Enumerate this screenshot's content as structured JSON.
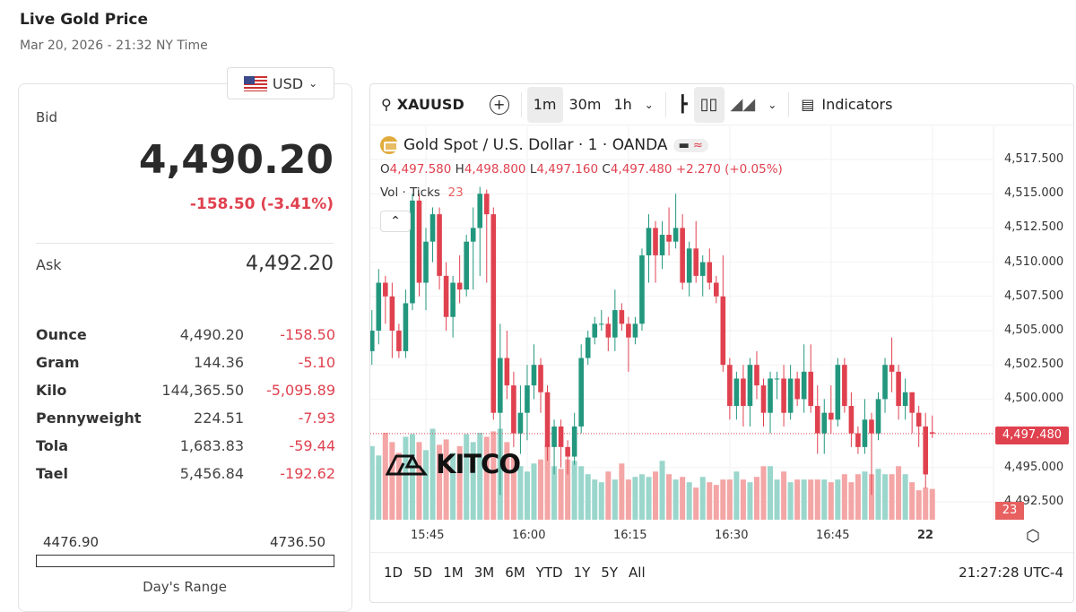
{
  "page": {
    "title": "Live Gold Price",
    "subtitle": "Mar 20, 2026 - 21:32 NY Time"
  },
  "currency": {
    "selected": "USD",
    "icon": "us-flag-icon"
  },
  "quote": {
    "bid_label": "Bid",
    "bid": "4,490.20",
    "change": "-158.50 (-3.41%)",
    "ask_label": "Ask",
    "ask": "4,492.20",
    "rows": [
      {
        "unit": "Ounce",
        "price": "4,490.20",
        "change": "-158.50"
      },
      {
        "unit": "Gram",
        "price": "144.36",
        "change": "-5.10"
      },
      {
        "unit": "Kilo",
        "price": "144,365.50",
        "change": "-5,095.89"
      },
      {
        "unit": "Pennyweight",
        "price": "224.51",
        "change": "-7.93"
      },
      {
        "unit": "Tola",
        "price": "1,683.83",
        "change": "-59.44"
      },
      {
        "unit": "Tael",
        "price": "5,456.84",
        "change": "-192.62"
      }
    ],
    "range_low": "4476.90",
    "range_high": "4736.50",
    "range_label": "Day's Range"
  },
  "toolbar": {
    "symbol": "XAUUSD",
    "intervals": [
      "1m",
      "30m",
      "1h"
    ],
    "active_interval": "1m",
    "indicators": "Indicators"
  },
  "legend": {
    "name": "Gold Spot / U.S. Dollar · 1 · OANDA",
    "o_label": "O",
    "o": "4,497.580",
    "h_label": "H",
    "h": "4,498.800",
    "l_label": "L",
    "l": "4,497.160",
    "c_label": "C",
    "c": "4,497.480",
    "chg": "+2.270 (+0.05%)",
    "vol_label": "Vol · Ticks",
    "vol": "23"
  },
  "watermark": "KITCO",
  "ranges": [
    "1D",
    "5D",
    "1M",
    "3M",
    "6M",
    "YTD",
    "1Y",
    "5Y",
    "All"
  ],
  "clock": "21:27:28 UTC-4",
  "colors": {
    "up": "#22977e",
    "down": "#e0414f",
    "up_vol": "#9ad6cc",
    "down_vol": "#f4a5a5"
  },
  "chart_data": {
    "type": "candlestick",
    "symbol": "XAUUSD",
    "interval": "1m",
    "y_ticks": [
      "4,517.500",
      "4,515.000",
      "4,512.500",
      "4,510.000",
      "4,507.500",
      "4,505.000",
      "4,502.500",
      "4,500.000",
      "4,495.000",
      "4,492.500"
    ],
    "x_ticks": [
      "15:45",
      "16:00",
      "16:15",
      "16:30",
      "16:45",
      "22"
    ],
    "ylim": [
      4491,
      4519
    ],
    "last_price": "4,497.480",
    "last_volume": "23",
    "start_time": "15:36",
    "ohlc": [
      [
        4495,
        4504,
        4493,
        4503.5
      ],
      [
        4503.5,
        4506.5,
        4502.5,
        4505
      ],
      [
        4505,
        4509.5,
        4504,
        4508.5
      ],
      [
        4508.5,
        4509,
        4505.5,
        4507.5
      ],
      [
        4507.5,
        4508.5,
        4503,
        4505
      ],
      [
        4505,
        4505.5,
        4503,
        4503.5
      ],
      [
        4503.5,
        4508,
        4503,
        4507
      ],
      [
        4507,
        4515,
        4506.5,
        4514.5
      ],
      [
        4514.5,
        4515,
        4507.5,
        4508.5
      ],
      [
        4508.5,
        4512.5,
        4506.5,
        4511.5
      ],
      [
        4511.5,
        4514,
        4510,
        4513.5
      ],
      [
        4513.5,
        4514,
        4508,
        4509
      ],
      [
        4509,
        4510,
        4505,
        4506
      ],
      [
        4506,
        4509,
        4504.5,
        4508.5
      ],
      [
        4508.5,
        4510.5,
        4507,
        4508
      ],
      [
        4508,
        4512,
        4507.5,
        4511.5
      ],
      [
        4511.5,
        4514,
        4508,
        4512.5
      ],
      [
        4512.5,
        4515.5,
        4509,
        4515
      ],
      [
        4515,
        4515.3,
        4508.5,
        4513.5
      ],
      [
        4513.5,
        4514,
        4498.5,
        4499
      ],
      [
        4499,
        4505.5,
        4493,
        4503
      ],
      [
        4503,
        4505,
        4500,
        4501
      ],
      [
        4501,
        4502,
        4496.5,
        4497.5
      ],
      [
        4497.5,
        4501,
        4496,
        4499
      ],
      [
        4499,
        4502.5,
        4497,
        4501
      ],
      [
        4501,
        4504,
        4500,
        4502.5
      ],
      [
        4502.5,
        4503,
        4499,
        4500.5
      ],
      [
        4500.5,
        4501,
        4495.5,
        4496.5
      ],
      [
        4496.5,
        4498.5,
        4494.5,
        4498
      ],
      [
        4498,
        4498.5,
        4495,
        4496.5
      ],
      [
        4496.5,
        4497,
        4494.5,
        4495.8
      ],
      [
        4495.8,
        4499,
        4495.2,
        4498
      ],
      [
        4498,
        4504,
        4497.5,
        4503
      ],
      [
        4503,
        4505,
        4502.5,
        4504.5
      ],
      [
        4504.5,
        4506,
        4504,
        4505.5
      ],
      [
        4505.5,
        4506.5,
        4505,
        4505.5
      ],
      [
        4505.5,
        4506,
        4503.5,
        4504.5
      ],
      [
        4504.5,
        4508,
        4503.5,
        4506.5
      ],
      [
        4506.5,
        4507,
        4505,
        4505.5
      ],
      [
        4505.5,
        4506,
        4502,
        4504.5
      ],
      [
        4504.5,
        4506,
        4504,
        4505.5
      ],
      [
        4505.5,
        4511,
        4505,
        4510.5
      ],
      [
        4510.5,
        4513.5,
        4508.5,
        4512.5
      ],
      [
        4512.5,
        4513,
        4508.5,
        4510.5
      ],
      [
        4510.5,
        4513,
        4509.5,
        4512
      ],
      [
        4512,
        4514,
        4510.5,
        4511.5
      ],
      [
        4511.5,
        4515,
        4511,
        4512.5
      ],
      [
        4512.5,
        4513.5,
        4508,
        4508.5
      ],
      [
        4508.5,
        4511.5,
        4507.5,
        4511
      ],
      [
        4511,
        4513,
        4508.5,
        4509
      ],
      [
        4509,
        4510.5,
        4507.5,
        4510
      ],
      [
        4510,
        4511,
        4508,
        4508.5
      ],
      [
        4508.5,
        4509,
        4507,
        4507.5
      ],
      [
        4507.5,
        4510.5,
        4502,
        4502.5
      ],
      [
        4502.5,
        4503,
        4498.5,
        4499.5
      ],
      [
        4499.5,
        4502,
        4498.5,
        4501.5
      ],
      [
        4501.5,
        4502.5,
        4498,
        4499.5
      ],
      [
        4499.5,
        4503,
        4498,
        4502.5
      ],
      [
        4502.5,
        4503.5,
        4500,
        4501
      ],
      [
        4501,
        4501.5,
        4498,
        4499
      ],
      [
        4499,
        4502,
        4497.5,
        4501.5
      ],
      [
        4501.5,
        4502,
        4500,
        4501.5
      ],
      [
        4501.5,
        4502.5,
        4498,
        4499
      ],
      [
        4499,
        4502.5,
        4498.5,
        4501.5
      ],
      [
        4501.5,
        4502,
        4499.5,
        4500
      ],
      [
        4500,
        4504,
        4499,
        4502
      ],
      [
        4502,
        4504,
        4499,
        4499.5
      ],
      [
        4499.5,
        4501,
        4496,
        4497.5
      ],
      [
        4497.5,
        4500,
        4496,
        4499
      ],
      [
        4499,
        4501,
        4497.5,
        4498.5
      ],
      [
        4498.5,
        4503,
        4498,
        4502.5
      ],
      [
        4502.5,
        4503,
        4499,
        4499.5
      ],
      [
        4499.5,
        4500.5,
        4496.5,
        4497.5
      ],
      [
        4497.5,
        4498,
        4496,
        4496.5
      ],
      [
        4496.5,
        4500,
        4496,
        4498.5
      ],
      [
        4498.5,
        4499,
        4493,
        4497.5
      ],
      [
        4497.5,
        4500.5,
        4497,
        4500
      ],
      [
        4500,
        4503,
        4499,
        4502.5
      ],
      [
        4502.5,
        4504.5,
        4500.5,
        4502
      ],
      [
        4502,
        4502.5,
        4498.5,
        4499.5
      ],
      [
        4499.5,
        4501.5,
        4498.5,
        4500.5
      ],
      [
        4500.5,
        4500.5,
        4497.5,
        4499
      ],
      [
        4499,
        4499.5,
        4496.5,
        4498
      ],
      [
        4498,
        4499,
        4493.5,
        4494.5
      ],
      [
        4497.58,
        4498.8,
        4497.16,
        4497.48
      ]
    ],
    "volume": [
      60,
      55,
      48,
      65,
      58,
      50,
      62,
      64,
      58,
      52,
      68,
      56,
      60,
      50,
      55,
      64,
      58,
      65,
      62,
      66,
      68,
      58,
      48,
      40,
      36,
      42,
      45,
      56,
      40,
      38,
      45,
      44,
      40,
      34,
      30,
      28,
      36,
      30,
      42,
      30,
      32,
      34,
      32,
      36,
      44,
      34,
      30,
      32,
      28,
      24,
      32,
      28,
      26,
      30,
      30,
      36,
      30,
      28,
      32,
      40,
      40,
      30,
      36,
      28,
      30,
      30,
      30,
      30,
      30,
      28,
      30,
      34,
      28,
      34,
      36,
      34,
      38,
      34,
      34,
      40,
      34,
      28,
      22,
      24,
      23
    ]
  }
}
